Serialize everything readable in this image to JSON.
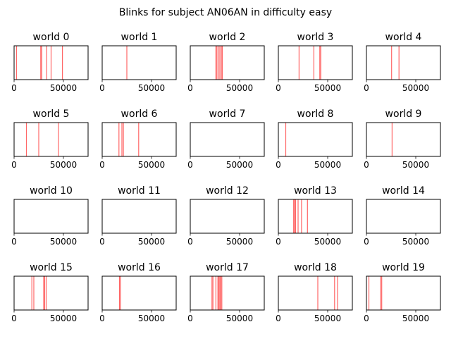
{
  "title": "Blinks for subject AN06AN in difficulty easy",
  "chart_data": [
    {
      "type": "event",
      "title": "world 0",
      "xlim": [
        0,
        75000
      ],
      "xticks": [
        0,
        50000
      ],
      "xtick_labels": [
        "0",
        "50000"
      ],
      "events": [
        2500,
        27000,
        28000,
        33000,
        37500,
        49000
      ]
    },
    {
      "type": "event",
      "title": "world 1",
      "xlim": [
        0,
        75000
      ],
      "xticks": [
        0,
        50000
      ],
      "xtick_labels": [
        "0",
        "50000"
      ],
      "events": [
        25000
      ]
    },
    {
      "type": "event",
      "title": "world 2",
      "xlim": [
        0,
        75000
      ],
      "xticks": [
        0,
        50000
      ],
      "xtick_labels": [
        "0",
        "50000"
      ],
      "events": [
        26000,
        27000,
        28500,
        30000,
        31500,
        32500
      ]
    },
    {
      "type": "event",
      "title": "world 3",
      "xlim": [
        0,
        75000
      ],
      "xticks": [
        0,
        50000
      ],
      "xtick_labels": [
        "0",
        "50000"
      ],
      "events": [
        21000,
        36000,
        42000,
        43000
      ]
    },
    {
      "type": "event",
      "title": "world 4",
      "xlim": [
        0,
        75000
      ],
      "xticks": [
        0,
        50000
      ],
      "xtick_labels": [
        "0",
        "50000"
      ],
      "events": [
        25500,
        33000
      ]
    },
    {
      "type": "event",
      "title": "world 5",
      "xlim": [
        0,
        75000
      ],
      "xticks": [
        0,
        50000
      ],
      "xtick_labels": [
        "0",
        "50000"
      ],
      "events": [
        12500,
        25000,
        45000
      ]
    },
    {
      "type": "event",
      "title": "world 6",
      "xlim": [
        0,
        75000
      ],
      "xticks": [
        0,
        50000
      ],
      "xtick_labels": [
        "0",
        "50000"
      ],
      "events": [
        17000,
        20000,
        21500,
        37000
      ]
    },
    {
      "type": "event",
      "title": "world 7",
      "xlim": [
        0,
        75000
      ],
      "xticks": [
        0,
        50000
      ],
      "xtick_labels": [
        "0",
        "50000"
      ],
      "events": []
    },
    {
      "type": "event",
      "title": "world 8",
      "xlim": [
        0,
        75000
      ],
      "xticks": [
        0,
        50000
      ],
      "xtick_labels": [
        "0",
        "50000"
      ],
      "events": [
        7500
      ]
    },
    {
      "type": "event",
      "title": "world 9",
      "xlim": [
        0,
        75000
      ],
      "xticks": [
        0,
        50000
      ],
      "xtick_labels": [
        "0",
        "50000"
      ],
      "events": [
        26000
      ]
    },
    {
      "type": "event",
      "title": "world 10",
      "xlim": [
        0,
        75000
      ],
      "xticks": [
        0,
        50000
      ],
      "xtick_labels": [
        "0",
        "50000"
      ],
      "events": []
    },
    {
      "type": "event",
      "title": "world 11",
      "xlim": [
        0,
        75000
      ],
      "xticks": [
        0,
        50000
      ],
      "xtick_labels": [
        "0",
        "50000"
      ],
      "events": []
    },
    {
      "type": "event",
      "title": "world 12",
      "xlim": [
        0,
        75000
      ],
      "xticks": [
        0,
        50000
      ],
      "xtick_labels": [
        "0",
        "50000"
      ],
      "events": []
    },
    {
      "type": "event",
      "title": "world 13",
      "xlim": [
        0,
        75000
      ],
      "xticks": [
        0,
        50000
      ],
      "xtick_labels": [
        "0",
        "50000"
      ],
      "events": [
        15500,
        16500,
        17500,
        20000,
        23500,
        29500
      ]
    },
    {
      "type": "event",
      "title": "world 14",
      "xlim": [
        0,
        75000
      ],
      "xticks": [
        0,
        50000
      ],
      "xtick_labels": [
        "0",
        "50000"
      ],
      "events": []
    },
    {
      "type": "event",
      "title": "world 15",
      "xlim": [
        0,
        75000
      ],
      "xticks": [
        0,
        50000
      ],
      "xtick_labels": [
        "0",
        "50000"
      ],
      "events": [
        18000,
        20000,
        30000,
        31000,
        32500
      ]
    },
    {
      "type": "event",
      "title": "world 16",
      "xlim": [
        0,
        75000
      ],
      "xticks": [
        0,
        50000
      ],
      "xtick_labels": [
        "0",
        "50000"
      ],
      "events": [
        17500,
        18500
      ]
    },
    {
      "type": "event",
      "title": "world 17",
      "xlim": [
        0,
        75000
      ],
      "xticks": [
        0,
        50000
      ],
      "xtick_labels": [
        "0",
        "50000"
      ],
      "events": [
        22000,
        23000,
        26000,
        28000,
        29000,
        30000,
        31000,
        32000
      ]
    },
    {
      "type": "event",
      "title": "world 18",
      "xlim": [
        0,
        75000
      ],
      "xticks": [
        0,
        50000
      ],
      "xtick_labels": [
        "0",
        "50000"
      ],
      "events": [
        40000,
        57000,
        60000
      ]
    },
    {
      "type": "event",
      "title": "world 19",
      "xlim": [
        0,
        75000
      ],
      "xticks": [
        0,
        50000
      ],
      "xtick_labels": [
        "0",
        "50000"
      ],
      "events": [
        2500,
        14500,
        15500
      ]
    }
  ],
  "colors": {
    "event_line": "#ff0000",
    "axis": "#000000",
    "background": "#ffffff"
  }
}
